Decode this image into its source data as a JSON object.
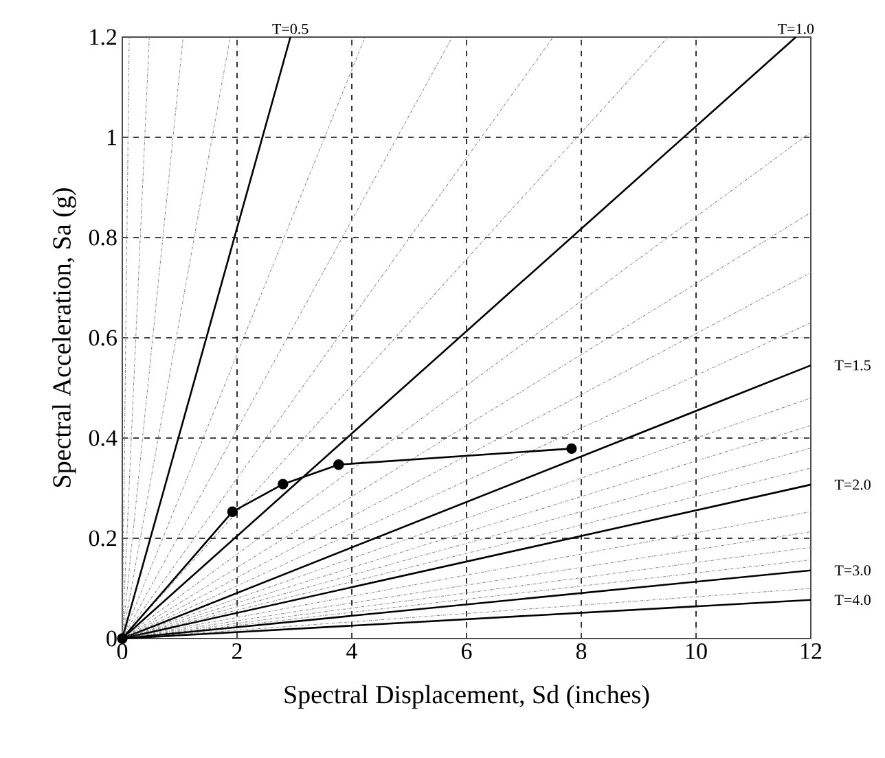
{
  "chart_data": {
    "type": "line",
    "xlabel": "Spectral Displacement, Sd (inches)",
    "ylabel": "Spectral Acceleration, Sa (g)",
    "xlim": [
      0,
      12
    ],
    "ylim": [
      0,
      1.2
    ],
    "xticks": [
      0,
      2,
      4,
      6,
      8,
      10,
      12
    ],
    "yticks": [
      0,
      0.2,
      0.4,
      0.6,
      0.8,
      1,
      1.2
    ],
    "grid": true,
    "series": [
      {
        "x": [
          0,
          0.12
        ],
        "values": [
          0,
          1.2
        ],
        "color": "#808080",
        "line_style": "dotted"
      },
      {
        "x": [
          0,
          0.47
        ],
        "values": [
          0,
          1.2
        ],
        "color": "#808080",
        "line_style": "dotted"
      },
      {
        "x": [
          0,
          1.06
        ],
        "values": [
          0,
          1.2
        ],
        "color": "#808080",
        "line_style": "dotted"
      },
      {
        "x": [
          0,
          1.88
        ],
        "values": [
          0,
          1.2
        ],
        "color": "#808080",
        "line_style": "dotted"
      },
      {
        "x": [
          0,
          2.93
        ],
        "values": [
          0,
          1.2
        ],
        "color": "#000000",
        "line_style": "solid"
      },
      {
        "x": [
          0,
          4.23
        ],
        "values": [
          0,
          1.2
        ],
        "color": "#808080",
        "line_style": "dotted"
      },
      {
        "x": [
          0,
          5.75
        ],
        "values": [
          0,
          1.2
        ],
        "color": "#808080",
        "line_style": "dotted"
      },
      {
        "x": [
          0,
          7.51
        ],
        "values": [
          0,
          1.2
        ],
        "color": "#808080",
        "line_style": "dotted"
      },
      {
        "x": [
          0,
          9.51
        ],
        "values": [
          0,
          1.2
        ],
        "color": "#808080",
        "line_style": "dotted"
      },
      {
        "x": [
          0,
          11.74
        ],
        "values": [
          0,
          1.2
        ],
        "color": "#000000",
        "line_style": "solid"
      },
      {
        "x": [
          0,
          12
        ],
        "values": [
          0,
          1.01
        ],
        "color": "#808080",
        "line_style": "dotted"
      },
      {
        "x": [
          0,
          12
        ],
        "values": [
          0,
          0.85
        ],
        "color": "#808080",
        "line_style": "dotted"
      },
      {
        "x": [
          0,
          12
        ],
        "values": [
          0,
          0.73
        ],
        "color": "#808080",
        "line_style": "dotted"
      },
      {
        "x": [
          0,
          12
        ],
        "values": [
          0,
          0.63
        ],
        "color": "#808080",
        "line_style": "dotted"
      },
      {
        "x": [
          0,
          12
        ],
        "values": [
          0,
          0.545
        ],
        "color": "#000000",
        "line_style": "solid"
      },
      {
        "x": [
          0,
          12
        ],
        "values": [
          0,
          0.48
        ],
        "color": "#808080",
        "line_style": "dotted"
      },
      {
        "x": [
          0,
          12
        ],
        "values": [
          0,
          0.425
        ],
        "color": "#808080",
        "line_style": "dotted"
      },
      {
        "x": [
          0,
          12
        ],
        "values": [
          0,
          0.38
        ],
        "color": "#808080",
        "line_style": "dotted"
      },
      {
        "x": [
          0,
          12
        ],
        "values": [
          0,
          0.34
        ],
        "color": "#808080",
        "line_style": "dotted"
      },
      {
        "x": [
          0,
          12
        ],
        "values": [
          0,
          0.307
        ],
        "color": "#000000",
        "line_style": "solid"
      },
      {
        "x": [
          0,
          12
        ],
        "values": [
          0,
          0.253
        ],
        "color": "#808080",
        "line_style": "dotted"
      },
      {
        "x": [
          0,
          12
        ],
        "values": [
          0,
          0.213
        ],
        "color": "#808080",
        "line_style": "dotted"
      },
      {
        "x": [
          0,
          12
        ],
        "values": [
          0,
          0.182
        ],
        "color": "#808080",
        "line_style": "dotted"
      },
      {
        "x": [
          0,
          12
        ],
        "values": [
          0,
          0.157
        ],
        "color": "#808080",
        "line_style": "dotted"
      },
      {
        "x": [
          0,
          12
        ],
        "values": [
          0,
          0.136
        ],
        "color": "#000000",
        "line_style": "solid"
      },
      {
        "x": [
          0,
          12
        ],
        "values": [
          0,
          0.1
        ],
        "color": "#808080",
        "line_style": "dotted"
      },
      {
        "x": [
          0,
          12
        ],
        "values": [
          0,
          0.077
        ],
        "color": "#000000",
        "line_style": "solid"
      },
      {
        "x": [
          0,
          1.92,
          2.8,
          3.77,
          7.83
        ],
        "values": [
          0,
          0.253,
          0.308,
          0.347,
          0.379
        ],
        "color": "#000000",
        "line_style": "solid",
        "marker": "circle"
      }
    ],
    "annotations": [
      {
        "text": "T=0.5",
        "x": 2.93,
        "y": 1.2
      },
      {
        "text": "T=1.0",
        "x": 11.74,
        "y": 1.2
      },
      {
        "text": "T=1.5",
        "x": 12,
        "y": 0.545
      },
      {
        "text": "T=2.0",
        "x": 12,
        "y": 0.307
      },
      {
        "text": "T=3.0",
        "x": 12,
        "y": 0.136
      },
      {
        "text": "T=4.0",
        "x": 12,
        "y": 0.077
      }
    ]
  }
}
